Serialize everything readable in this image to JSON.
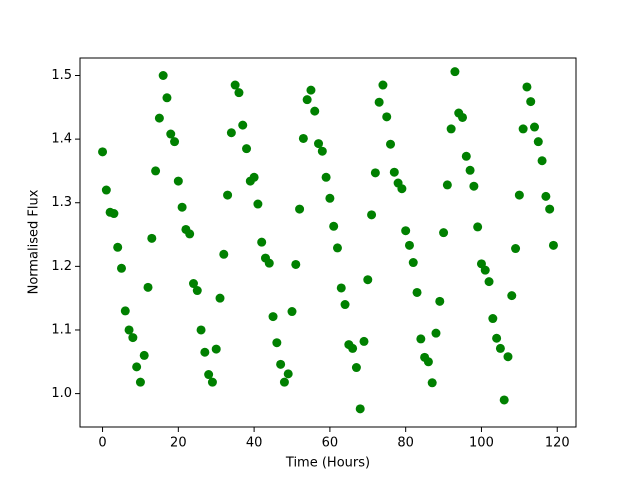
{
  "chart_data": {
    "type": "scatter",
    "x_label": "Time (Hours)",
    "y_label": "Normalised Flux",
    "color": "#008000",
    "x": [
      0,
      1,
      2,
      3,
      4,
      5,
      6,
      7,
      8,
      9,
      10,
      11,
      12,
      13,
      14,
      15,
      16,
      17,
      18,
      19,
      20,
      21,
      22,
      23,
      24,
      25,
      26,
      27,
      28,
      29,
      30,
      31,
      32,
      33,
      34,
      35,
      36,
      37,
      38,
      39,
      40,
      41,
      42,
      43,
      44,
      45,
      46,
      47,
      48,
      49,
      50,
      51,
      52,
      53,
      54,
      55,
      56,
      57,
      58,
      59,
      60,
      61,
      62,
      63,
      64,
      65,
      66,
      67,
      68,
      69,
      70,
      71,
      72,
      73,
      74,
      75,
      76,
      77,
      78,
      79,
      80,
      81,
      82,
      83,
      84,
      85,
      86,
      87,
      88,
      89,
      90,
      91,
      92,
      93,
      94,
      95,
      96,
      97,
      98,
      99,
      100,
      101,
      102,
      103,
      104,
      105,
      106,
      107,
      108,
      109,
      110,
      111,
      112,
      113,
      114,
      115,
      116,
      117,
      118,
      119
    ],
    "values": [
      1.38,
      1.32,
      1.285,
      1.283,
      1.23,
      1.197,
      1.13,
      1.1,
      1.088,
      1.042,
      1.018,
      1.06,
      1.167,
      1.244,
      1.35,
      1.433,
      1.5,
      1.465,
      1.408,
      1.396,
      1.334,
      1.293,
      1.258,
      1.251,
      1.173,
      1.162,
      1.1,
      1.065,
      1.03,
      1.018,
      1.07,
      1.15,
      1.219,
      1.312,
      1.41,
      1.485,
      1.473,
      1.422,
      1.385,
      1.334,
      1.34,
      1.298,
      1.238,
      1.213,
      1.205,
      1.121,
      1.08,
      1.046,
      1.018,
      1.031,
      1.129,
      1.203,
      1.29,
      1.401,
      1.462,
      1.477,
      1.444,
      1.393,
      1.381,
      1.34,
      1.307,
      1.263,
      1.229,
      1.166,
      1.14,
      1.077,
      1.071,
      1.041,
      0.976,
      1.082,
      1.179,
      1.281,
      1.347,
      1.458,
      1.485,
      1.435,
      1.392,
      1.348,
      1.331,
      1.322,
      1.256,
      1.233,
      1.206,
      1.159,
      1.086,
      1.057,
      1.05,
      1.017,
      1.095,
      1.145,
      1.253,
      1.328,
      1.416,
      1.506,
      1.441,
      1.434,
      1.373,
      1.351,
      1.326,
      1.262,
      1.204,
      1.194,
      1.176,
      1.118,
      1.087,
      1.071,
      0.99,
      1.058,
      1.154,
      1.228,
      1.312,
      1.416,
      1.482,
      1.459,
      1.419,
      1.396,
      1.366,
      1.31,
      1.29,
      1.233
    ],
    "xlim": [
      -5.95,
      124.95
    ],
    "xticks": [
      0,
      20,
      40,
      60,
      80,
      100,
      120
    ],
    "ylim": [
      0.9475,
      1.5275
    ],
    "yticks": [
      {
        "value": 1.0,
        "label": "1.0"
      },
      1.1,
      1.2,
      1.3,
      1.4,
      1.5
    ]
  }
}
